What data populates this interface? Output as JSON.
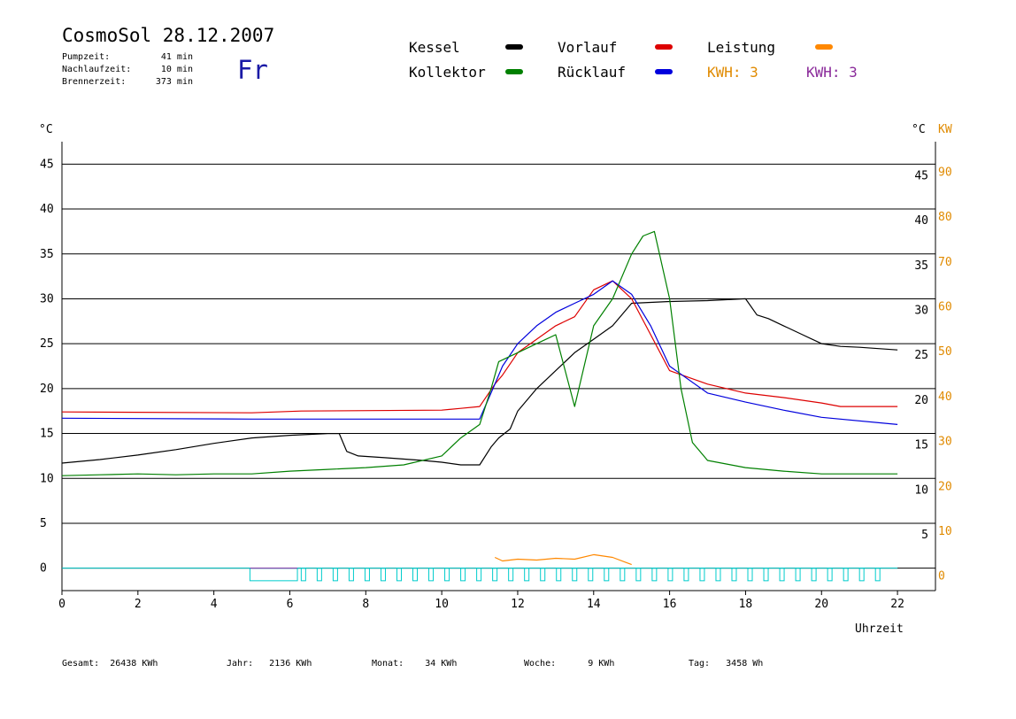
{
  "header": {
    "title": "CosmoSol 28.12.2007",
    "day": "Fr",
    "stats": [
      {
        "label": "Pumpzeit:",
        "value": "41 min"
      },
      {
        "label": "Nachlaufzeit:",
        "value": "10 min"
      },
      {
        "label": "Brennerzeit:",
        "value": "373 min"
      }
    ]
  },
  "legend": {
    "kessel": {
      "label": "Kessel",
      "color": "#000000"
    },
    "vorlauf": {
      "label": "Vorlauf",
      "color": "#dd0000"
    },
    "leistung": {
      "label": "Leistung",
      "color": "#ff8800"
    },
    "kollektor": {
      "label": "Kollektor",
      "color": "#008000"
    },
    "ruecklauf": {
      "label": "Rücklauf",
      "color": "#0000dd"
    },
    "kwh1": {
      "label": "KWH:",
      "value": "3",
      "color": "#e08a00"
    },
    "kwh2": {
      "label": "KWH:",
      "value": "3",
      "color": "#8a2a9a"
    }
  },
  "footer": [
    {
      "label": "Gesamt:",
      "value": "26438 KWh"
    },
    {
      "label": "Jahr:",
      "value": "2136 KWh"
    },
    {
      "label": "Monat:",
      "value": "34 KWh"
    },
    {
      "label": "Woche:",
      "value": "9 KWh"
    },
    {
      "label": "Tag:",
      "value": "3458 Wh"
    }
  ],
  "chart_data": {
    "type": "line",
    "xlabel": "Uhrzeit",
    "ylabel_left": "°C",
    "ylabel_right": "°C",
    "ylabel_right2": "KW",
    "xlim": [
      0,
      23
    ],
    "ylim": [
      -2.5,
      47.5
    ],
    "x_ticks": [
      "0",
      "2",
      "4",
      "6",
      "8",
      "10",
      "12",
      "14",
      "16",
      "18",
      "20",
      "22"
    ],
    "y_ticks_left": [
      "45",
      "40",
      "35",
      "30",
      "25",
      "20",
      "15",
      "10",
      "5",
      "0"
    ],
    "y_ticks_right": [
      "45",
      "40",
      "35",
      "30",
      "25",
      "20",
      "15",
      "10",
      "5"
    ],
    "y_ticks_kw": [
      "90",
      "80",
      "70",
      "60",
      "50",
      "40",
      "30",
      "20",
      "10",
      "0"
    ],
    "grid_y": [
      0,
      5,
      10,
      15,
      20,
      25,
      30,
      35,
      40,
      45
    ],
    "series": [
      {
        "name": "Kessel",
        "color": "#000000",
        "x": [
          0,
          1,
          2,
          3,
          4,
          5,
          6,
          7,
          7.3,
          7.5,
          7.8,
          8.5,
          9.5,
          10,
          10.5,
          11,
          11.3,
          11.5,
          11.8,
          12,
          12.5,
          13,
          13.5,
          14,
          14.5,
          15,
          16,
          17,
          18,
          18.3,
          18.6,
          19,
          19.5,
          20,
          20.5,
          21,
          22
        ],
        "y": [
          11.7,
          12.1,
          12.6,
          13.2,
          13.9,
          14.5,
          14.8,
          15.0,
          15.0,
          13.0,
          12.5,
          12.3,
          12.0,
          11.8,
          11.5,
          11.5,
          13.5,
          14.5,
          15.5,
          17.5,
          20,
          22,
          24,
          25.5,
          27,
          29.5,
          29.7,
          29.8,
          30.0,
          28.2,
          27.8,
          27.0,
          26.0,
          25.0,
          24.7,
          24.6,
          24.3
        ]
      },
      {
        "name": "Vorlauf",
        "color": "#dd0000",
        "x": [
          0,
          5,
          6.3,
          10,
          10.5,
          11,
          11.4,
          11.6,
          12,
          12.5,
          13,
          13.5,
          14,
          14.5,
          15,
          15.5,
          16,
          17,
          18,
          19,
          20,
          20.5,
          22
        ],
        "y": [
          17.4,
          17.3,
          17.5,
          17.6,
          17.8,
          18.0,
          20.5,
          21.5,
          24,
          25.5,
          27,
          28,
          31,
          32,
          30,
          26,
          22,
          20.5,
          19.5,
          19,
          18.4,
          18.0,
          18.0
        ]
      },
      {
        "name": "Rücklauf",
        "color": "#0000dd",
        "x": [
          0,
          5,
          10,
          11,
          11.4,
          11.6,
          12,
          12.5,
          13,
          13.5,
          14,
          14.5,
          15,
          15.5,
          16,
          17,
          18,
          19,
          20,
          22
        ],
        "y": [
          16.7,
          16.6,
          16.6,
          16.6,
          20.5,
          22.5,
          25,
          27,
          28.5,
          29.5,
          30.5,
          32,
          30.5,
          27,
          22.5,
          19.5,
          18.5,
          17.6,
          16.8,
          16.0
        ]
      },
      {
        "name": "Kollektor",
        "color": "#008000",
        "x": [
          0,
          1,
          2,
          3,
          4,
          5,
          6,
          7,
          8,
          9,
          10,
          10.5,
          11,
          11.3,
          11.5,
          12,
          12.5,
          13,
          13.5,
          14,
          14.5,
          15,
          15.3,
          15.6,
          16,
          16.3,
          16.6,
          17,
          18,
          19,
          20,
          21,
          22
        ],
        "y": [
          10.3,
          10.4,
          10.5,
          10.4,
          10.5,
          10.5,
          10.8,
          11.0,
          11.2,
          11.5,
          12.5,
          14.5,
          16.0,
          20,
          23,
          24,
          25,
          26,
          18,
          27,
          30,
          35,
          37,
          37.5,
          30,
          20,
          14,
          12.0,
          11.2,
          10.8,
          10.5,
          10.5,
          10.5
        ]
      },
      {
        "name": "Leistung",
        "color": "#ff8800",
        "x": [
          11.4,
          11.6,
          12,
          12.5,
          13,
          13.5,
          14,
          14.5,
          15
        ],
        "y": [
          1.2,
          0.8,
          1.0,
          0.9,
          1.1,
          1.0,
          1.5,
          1.2,
          0.4
        ]
      }
    ]
  }
}
